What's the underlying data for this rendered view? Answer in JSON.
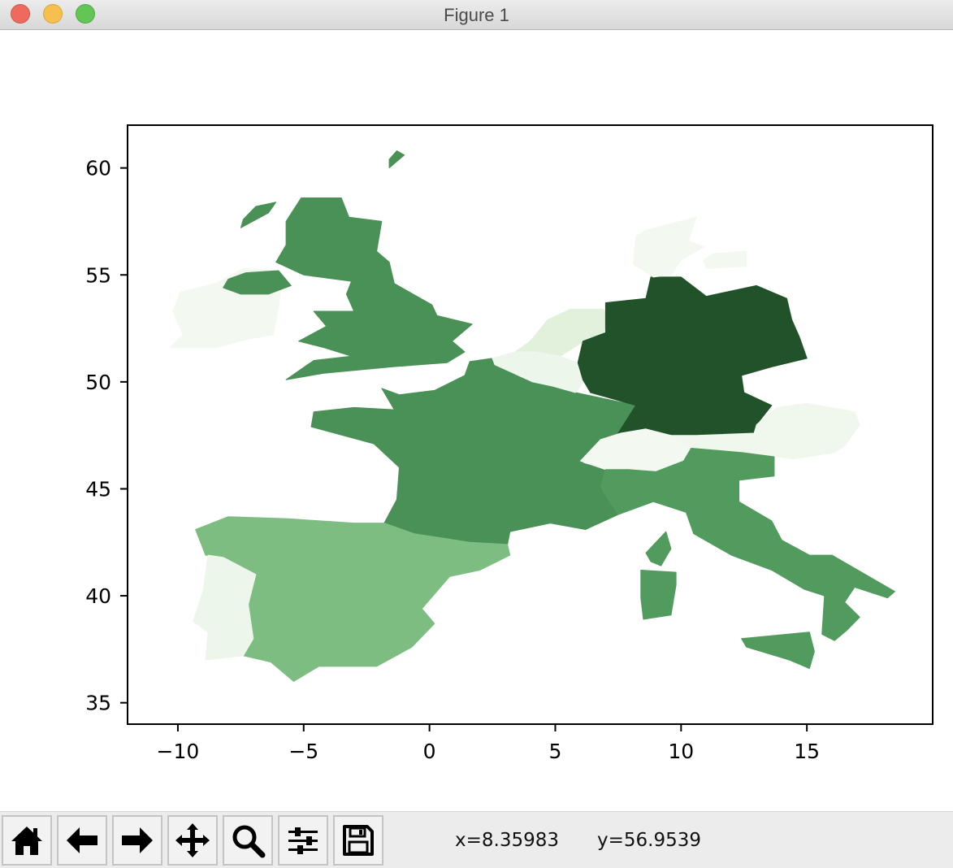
{
  "window": {
    "title": "Figure 1"
  },
  "toolbar": {
    "buttons": [
      {
        "name": "home-button",
        "icon": "home-icon"
      },
      {
        "name": "back-button",
        "icon": "arrow-left-icon"
      },
      {
        "name": "forward-button",
        "icon": "arrow-right-icon"
      },
      {
        "name": "pan-button",
        "icon": "move-icon"
      },
      {
        "name": "zoom-button",
        "icon": "magnifier-icon"
      },
      {
        "name": "configure-subplots-button",
        "icon": "sliders-icon"
      },
      {
        "name": "save-button",
        "icon": "floppy-disk-icon"
      }
    ],
    "x_readout": "x=8.35983",
    "y_readout": "y=56.9539"
  },
  "chart_data": {
    "type": "choropleth",
    "title": "",
    "xlabel": "",
    "ylabel": "",
    "xlim": [
      -12,
      20
    ],
    "ylim": [
      34,
      62
    ],
    "xticks": [
      -10,
      -5,
      0,
      5,
      10,
      15
    ],
    "xtick_labels": [
      "−10",
      "−5",
      "0",
      "5",
      "10",
      "15"
    ],
    "yticks": [
      35,
      40,
      45,
      50,
      55,
      60
    ],
    "ytick_labels": [
      "35",
      "40",
      "45",
      "50",
      "55",
      "60"
    ],
    "colormap": "Greens",
    "regions": [
      {
        "name": "Ireland",
        "color": "#f3f9f1"
      },
      {
        "name": "United Kingdom",
        "color": "#4a9157"
      },
      {
        "name": "France",
        "color": "#4a9157"
      },
      {
        "name": "Spain",
        "color": "#7dbd82"
      },
      {
        "name": "Portugal",
        "color": "#edf6ea"
      },
      {
        "name": "Netherlands",
        "color": "#e2f1dc"
      },
      {
        "name": "Belgium",
        "color": "#edf6ea"
      },
      {
        "name": "Germany",
        "color": "#225229"
      },
      {
        "name": "Denmark",
        "color": "#f3f9f1"
      },
      {
        "name": "Switzerland",
        "color": "#f3f9f1"
      },
      {
        "name": "Austria",
        "color": "#f0f7ec"
      },
      {
        "name": "Italy",
        "color": "#529b5e"
      }
    ]
  }
}
